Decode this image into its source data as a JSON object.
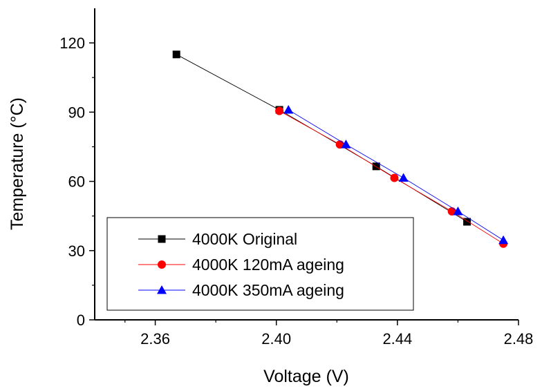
{
  "chart_data": {
    "type": "line",
    "title": "",
    "xlabel": "Voltage (V)",
    "ylabel": "Temperature (°C)",
    "xlim": [
      2.34,
      2.48
    ],
    "ylim": [
      0,
      135
    ],
    "xticks": [
      2.36,
      2.4,
      2.44,
      2.48
    ],
    "xtick_labels": [
      "2.36",
      "2.40",
      "2.44",
      "2.48"
    ],
    "yticks": [
      0,
      30,
      60,
      90,
      120
    ],
    "ytick_labels": [
      "0",
      "30",
      "60",
      "90",
      "120"
    ],
    "grid": false,
    "legend_position": "bottom-left",
    "series": [
      {
        "name": "4000K Original",
        "color": "#000000",
        "marker": "square",
        "x": [
          2.367,
          2.401,
          2.433,
          2.463
        ],
        "y": [
          115,
          91,
          66.5,
          42.5
        ]
      },
      {
        "name": "4000K 120mA ageing",
        "color": "#ff0000",
        "marker": "circle",
        "x": [
          2.401,
          2.421,
          2.439,
          2.458,
          2.475
        ],
        "y": [
          90.5,
          76,
          61.5,
          47,
          33
        ]
      },
      {
        "name": "4000K 350mA ageing",
        "color": "#0000ff",
        "marker": "triangle",
        "x": [
          2.404,
          2.423,
          2.442,
          2.46,
          2.475
        ],
        "y": [
          91,
          76,
          61.5,
          47,
          34.5
        ]
      }
    ]
  }
}
